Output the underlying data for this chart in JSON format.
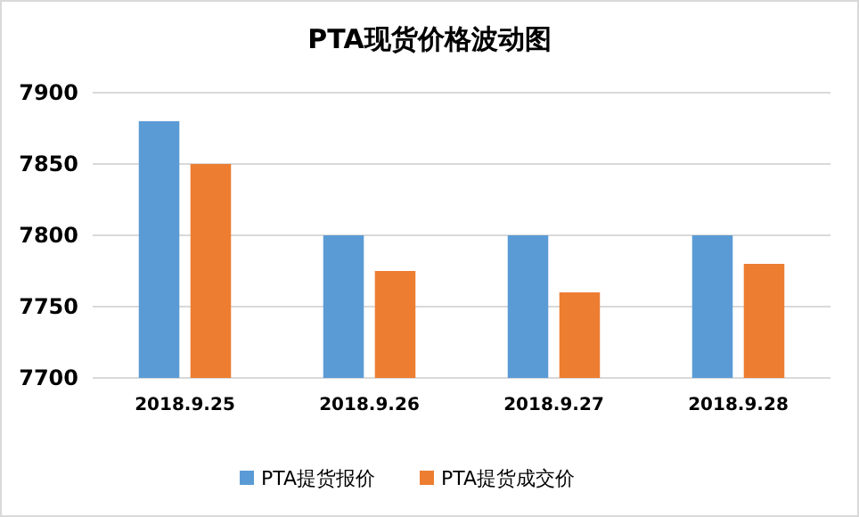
{
  "chart_data": {
    "type": "bar",
    "title": "PTA现货价格波动图",
    "categories": [
      "2018.9.25",
      "2018.9.26",
      "2018.9.27",
      "2018.9.28"
    ],
    "series": [
      {
        "name": "PTA提货报价",
        "color": "#5b9bd5",
        "values": [
          7880,
          7800,
          7800,
          7800
        ]
      },
      {
        "name": "PTA提货成交价",
        "color": "#ed7d31",
        "values": [
          7850,
          7775,
          7760,
          7780
        ]
      }
    ],
    "ylim": [
      7700,
      7900
    ],
    "yticks": [
      7700,
      7750,
      7800,
      7850,
      7900
    ],
    "grid": "y",
    "legend": "bottom"
  }
}
